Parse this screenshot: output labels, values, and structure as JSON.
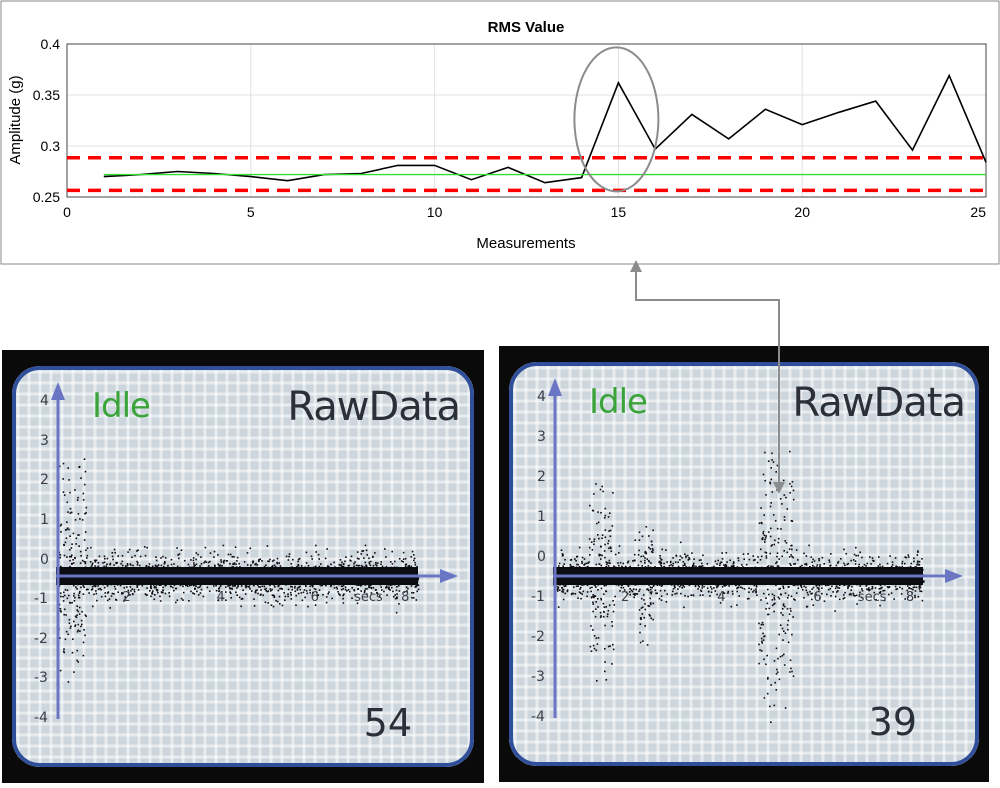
{
  "chart_data": {
    "type": "line",
    "title": "RMS Value",
    "xlabel": "Measurements",
    "ylabel": "Amplitude (g)",
    "xlim": [
      0,
      25
    ],
    "ylim": [
      0.25,
      0.4
    ],
    "xticks": [
      0,
      5,
      10,
      15,
      20,
      25
    ],
    "yticks": [
      0.25,
      0.3,
      0.35,
      0.4
    ],
    "grid": true,
    "series": [
      {
        "color": "#000000",
        "x": [
          1,
          2,
          3,
          4,
          5,
          6,
          7,
          8,
          9,
          10,
          11,
          12,
          13,
          14,
          15,
          16,
          17,
          18,
          19,
          20,
          21,
          22,
          23,
          24,
          25
        ],
        "y": [
          0.27,
          0.272,
          0.275,
          0.273,
          0.27,
          0.266,
          0.272,
          0.273,
          0.281,
          0.281,
          0.267,
          0.279,
          0.264,
          0.269,
          0.362,
          0.297,
          0.331,
          0.307,
          0.336,
          0.321,
          0.333,
          0.344,
          0.296,
          0.369,
          0.284
        ]
      },
      {
        "color": "#33dd33",
        "x": [
          1,
          25
        ],
        "y": [
          0.272,
          0.272
        ]
      }
    ],
    "thresholds": [
      {
        "y": 0.2885,
        "color": "#ff0000",
        "style": "dashed"
      },
      {
        "y": 0.2565,
        "color": "#ff0000",
        "style": "dashed"
      }
    ],
    "annotation": {
      "type": "ellipse",
      "x": 15,
      "y": 0.33
    }
  },
  "screens": [
    {
      "mode": "Idle",
      "title": "RawData",
      "count": "54",
      "yticks": [
        "4",
        "3",
        "2",
        "1",
        "0",
        "-1",
        "-2",
        "-3",
        "-4"
      ],
      "xticks": [
        "2",
        "4",
        "6",
        "secs",
        "8"
      ]
    },
    {
      "mode": "Idle",
      "title": "RawData",
      "count": "39",
      "yticks": [
        "4",
        "3",
        "2",
        "1",
        "0",
        "-1",
        "-2",
        "-3",
        "-4"
      ],
      "xticks": [
        "2",
        "4",
        "6",
        "secs",
        "8"
      ]
    }
  ],
  "colors": {
    "lcd_bg": "#cdd6dc",
    "lcd_border": "#2f4f9a",
    "axis": "#6a76c4",
    "trace": "#0b0b12"
  }
}
